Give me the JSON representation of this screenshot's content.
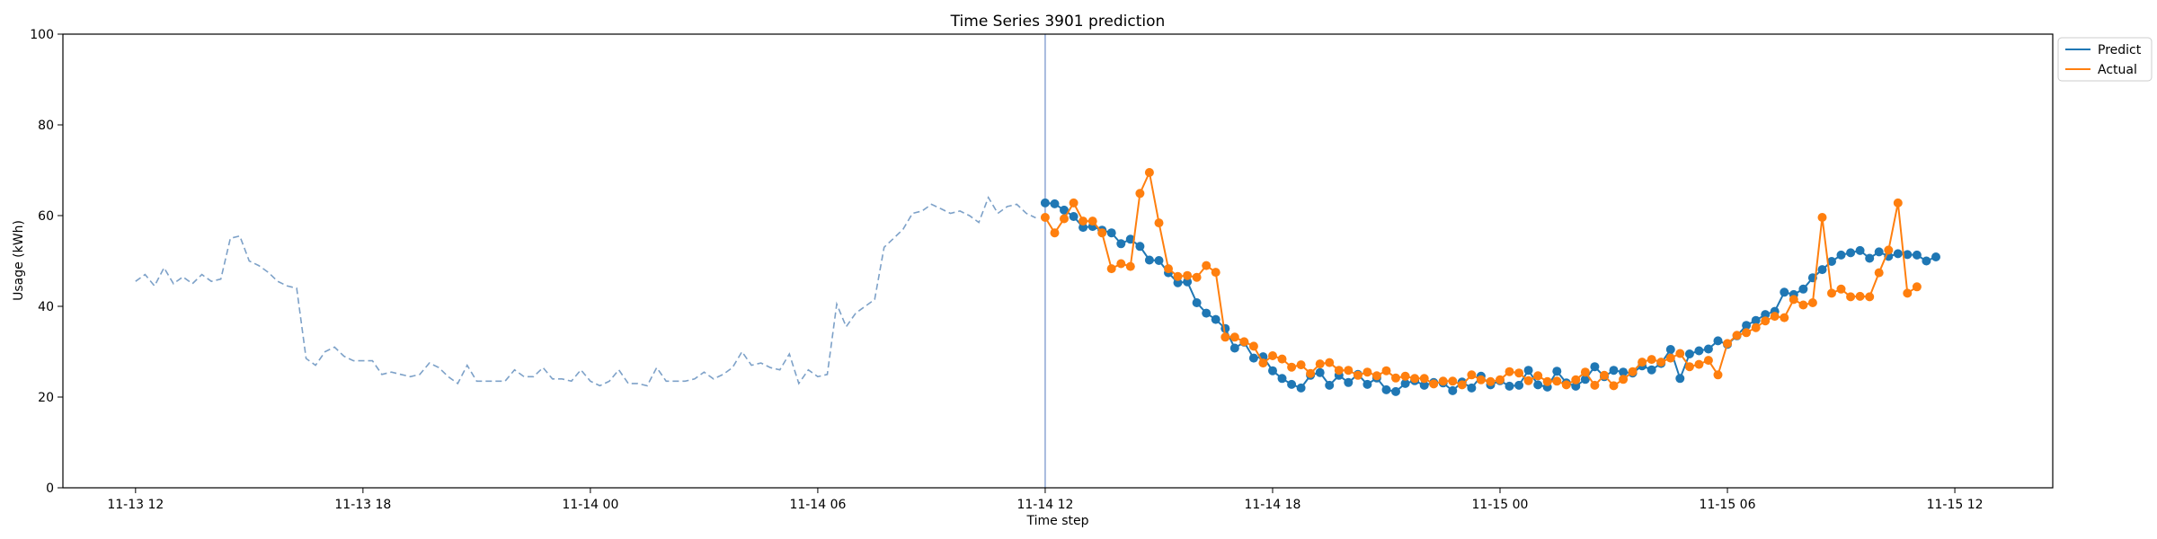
{
  "chart_data": {
    "type": "line",
    "title": "Time Series 3901 prediction",
    "xlabel": "Time step",
    "ylabel": "Usage (kWh)",
    "x_unit": "hour",
    "x_ticks": [
      "11-13 12",
      "11-13 18",
      "11-14 00",
      "11-14 06",
      "11-14 12",
      "11-14 18",
      "11-15 00",
      "11-15 06",
      "11-15 12"
    ],
    "xlim": [
      "11-13 10:05",
      "11-15 14:35"
    ],
    "y_ticks": [
      0,
      20,
      40,
      60,
      80,
      100
    ],
    "ylim": [
      0,
      100
    ],
    "forecast_start": "11-14 12:00",
    "legend_position": "outside top-right",
    "grid": false,
    "colors": {
      "history": "#7da1c8",
      "predict": "#1f77b4",
      "actual": "#ff7f0e",
      "divider": "#6f8fc8"
    },
    "history": {
      "start": "11-13 12:00",
      "step_minutes": 15,
      "values": [
        45.5,
        47,
        44.5,
        48.5,
        45,
        46.5,
        45,
        47,
        45.5,
        46,
        55,
        55.5,
        50,
        49,
        47.5,
        45.5,
        44.5,
        44,
        28.5,
        27,
        30,
        31,
        29,
        28,
        28,
        28,
        25,
        25.5,
        25,
        24.5,
        25,
        27.5,
        26.5,
        24.5,
        23,
        27,
        23.5,
        23.5,
        23.5,
        23.5,
        26,
        24.5,
        24.5,
        26.5,
        24,
        24,
        23.5,
        26,
        23.5,
        22.5,
        23.5,
        26,
        23,
        23,
        22.5,
        26.5,
        23.5,
        23.5,
        23.5,
        24,
        25.5,
        24,
        25,
        26.5,
        30,
        27,
        27.5,
        26.5,
        26,
        29.5,
        23,
        26,
        24.5,
        25,
        40.5,
        35.5,
        38.5,
        40,
        41.5,
        53,
        55,
        57,
        60.5,
        61,
        62.5,
        61.5,
        60.5,
        61,
        60,
        58.5,
        64,
        60.5,
        62,
        62.5,
        60.5,
        59.5
      ]
    },
    "series": [
      {
        "name": "Predict",
        "start": "11-14 12:00",
        "step_minutes": 15,
        "values": [
          62.8,
          62.6,
          61.2,
          59.8,
          57.4,
          57.6,
          56.8,
          56.2,
          53.8,
          54.8,
          53.2,
          50.2,
          50.1,
          47.4,
          45.2,
          45.4,
          40.8,
          38.5,
          37.1,
          35.1,
          30.8,
          32.1,
          28.6,
          28.9,
          25.8,
          24.1,
          22.8,
          22,
          24.8,
          25.4,
          22.6,
          24.8,
          23.2,
          25,
          22.8,
          24.2,
          21.6,
          21.2,
          23,
          23.6,
          22.6,
          23.2,
          23.1,
          21.4,
          23.3,
          22,
          24.6,
          22.7,
          23.6,
          22.4,
          22.6,
          25.9,
          22.7,
          22.2,
          25.7,
          23.1,
          22.4,
          23.9,
          26.7,
          24.5,
          25.9,
          25.5,
          25.3,
          26.9,
          26,
          27.4,
          30.5,
          24.1,
          29.5,
          30.2,
          30.6,
          32.4,
          31.6,
          33.5,
          35.8,
          36.9,
          38.2,
          38.9,
          43.1,
          42.6,
          43.8,
          46.3,
          48.1,
          49.9,
          51.3,
          51.8,
          52.3,
          50.6,
          52,
          51,
          51.6,
          51.4,
          51.3,
          50,
          50.9
        ]
      },
      {
        "name": "Actual",
        "start": "11-14 12:00",
        "step_minutes": 15,
        "values": [
          59.6,
          56.2,
          59.3,
          62.8,
          58.8,
          58.8,
          56.2,
          48.3,
          49.4,
          48.8,
          64.9,
          69.5,
          58.4,
          48.3,
          46.6,
          46.8,
          46.4,
          49,
          47.5,
          33.2,
          33.2,
          32.2,
          31.2,
          27.5,
          29.1,
          28.4,
          26.6,
          27.1,
          25.2,
          27.3,
          27.6,
          25.9,
          25.9,
          24.8,
          25.5,
          24.7,
          25.8,
          24.2,
          24.6,
          24.1,
          24.1,
          22.9,
          23.5,
          23.5,
          22.7,
          24.9,
          23.8,
          23.4,
          23.8,
          25.6,
          25.3,
          23.6,
          24.7,
          23.4,
          23.5,
          22.7,
          23.8,
          25.5,
          22.6,
          24.8,
          22.5,
          23.9,
          25.6,
          27.7,
          28.3,
          27.7,
          28.6,
          29.6,
          26.7,
          27.2,
          28.1,
          24.9,
          31.8,
          33.6,
          34.2,
          35.3,
          36.8,
          37.8,
          37.5,
          41.5,
          40.3,
          40.8,
          59.6,
          42.9,
          43.8,
          42.1,
          42.2,
          42.1,
          47.4,
          52.4,
          62.8,
          42.9,
          44.3
        ]
      }
    ]
  }
}
